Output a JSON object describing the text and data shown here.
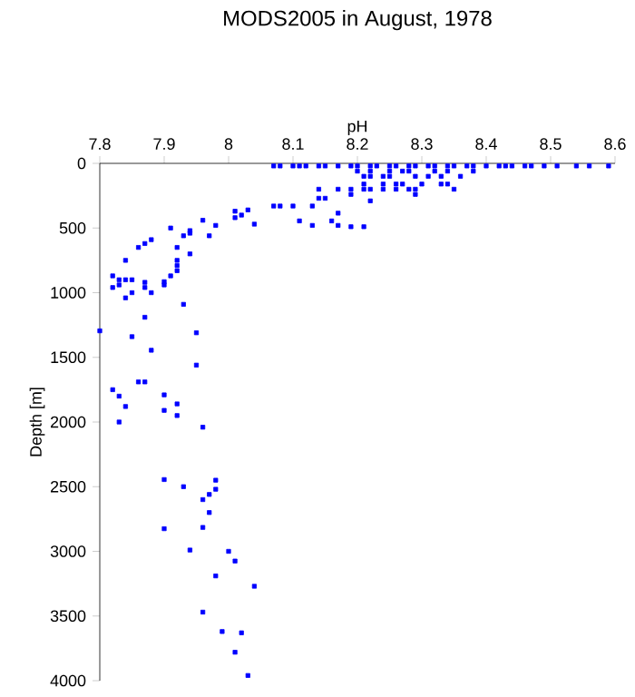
{
  "chart_data": {
    "type": "scatter",
    "title": "MODS2005 in August, 1978",
    "xlabel": "pH",
    "ylabel": "Depth [m]",
    "xlim": [
      7.8,
      8.6
    ],
    "xticks": [
      7.8,
      7.9,
      8,
      8.1,
      8.2,
      8.3,
      8.4,
      8.5,
      8.6
    ],
    "ylim": [
      4000,
      0
    ],
    "yticks": [
      0,
      500,
      1000,
      1500,
      2000,
      2500,
      3000,
      3500,
      4000
    ],
    "marker": "square",
    "series": [
      {
        "color": "#0000ff",
        "x": [
          8.07,
          8.08,
          8.1,
          8.11,
          8.12,
          8.14,
          8.15,
          8.17,
          8.19,
          8.2,
          8.22,
          8.23,
          8.25,
          8.26,
          8.28,
          8.29,
          8.31,
          8.32,
          8.34,
          8.35,
          8.37,
          8.38,
          8.4,
          8.42,
          8.43,
          8.44,
          8.46,
          8.47,
          8.49,
          8.51,
          8.54,
          8.56,
          8.59,
          8.2,
          8.22,
          8.25,
          8.27,
          8.28,
          8.32,
          8.34,
          8.38,
          8.21,
          8.22,
          8.24,
          8.25,
          8.29,
          8.31,
          8.33,
          8.36,
          8.21,
          8.24,
          8.26,
          8.27,
          8.3,
          8.33,
          8.34,
          8.14,
          8.17,
          8.19,
          8.21,
          8.22,
          8.24,
          8.26,
          8.28,
          8.29,
          8.35,
          8.19,
          8.29,
          8.14,
          8.15,
          8.22,
          8.07,
          8.08,
          8.1,
          8.13,
          8.01,
          8.01,
          8.02,
          8.03,
          8.17,
          8.11,
          8.16,
          8.04,
          8.13,
          8.17,
          8.19,
          8.21,
          7.96,
          7.98,
          7.91,
          7.94,
          7.93,
          7.94,
          7.97,
          7.88,
          7.87,
          7.86,
          7.84,
          7.92,
          7.94,
          7.92,
          7.92,
          7.92,
          7.91,
          7.82,
          7.84,
          7.85,
          7.87,
          7.83,
          7.82,
          7.87,
          7.9,
          7.83,
          7.9,
          7.85,
          7.88,
          7.84,
          7.93,
          7.87,
          7.8,
          7.85,
          7.95,
          7.88,
          7.95,
          7.86,
          7.87,
          7.82,
          7.83,
          7.9,
          7.92,
          7.84,
          7.9,
          7.92,
          7.83,
          7.96,
          7.9,
          7.93,
          7.98,
          7.98,
          7.96,
          7.97,
          7.97,
          7.9,
          7.96,
          7.94,
          8.0,
          8.01,
          7.98,
          8.04,
          7.96,
          7.99,
          8.02,
          8.01,
          8.03
        ],
        "values": [
          20,
          20,
          20,
          20,
          20,
          20,
          20,
          20,
          20,
          20,
          20,
          20,
          20,
          20,
          20,
          20,
          20,
          20,
          20,
          20,
          20,
          20,
          20,
          20,
          20,
          20,
          20,
          20,
          20,
          20,
          20,
          20,
          20,
          60,
          60,
          60,
          60,
          60,
          60,
          60,
          60,
          100,
          100,
          100,
          100,
          100,
          100,
          100,
          100,
          160,
          160,
          160,
          160,
          160,
          160,
          160,
          200,
          200,
          200,
          200,
          200,
          200,
          200,
          200,
          200,
          200,
          240,
          240,
          270,
          270,
          290,
          330,
          330,
          330,
          330,
          370,
          420,
          400,
          360,
          385,
          445,
          445,
          470,
          480,
          480,
          490,
          490,
          440,
          480,
          500,
          520,
          560,
          540,
          560,
          590,
          620,
          650,
          750,
          650,
          700,
          750,
          790,
          830,
          870,
          870,
          900,
          900,
          920,
          940,
          960,
          960,
          940,
          900,
          915,
          1000,
          1000,
          1040,
          1090,
          1190,
          1295,
          1340,
          1310,
          1445,
          1560,
          1690,
          1690,
          1750,
          1800,
          1790,
          1860,
          1880,
          1910,
          1950,
          2000,
          2040,
          2445,
          2500,
          2450,
          2520,
          2600,
          2560,
          2700,
          2825,
          2815,
          2990,
          3000,
          3075,
          3190,
          3270,
          3470,
          3620,
          3630,
          3780,
          3960
        ]
      }
    ]
  }
}
